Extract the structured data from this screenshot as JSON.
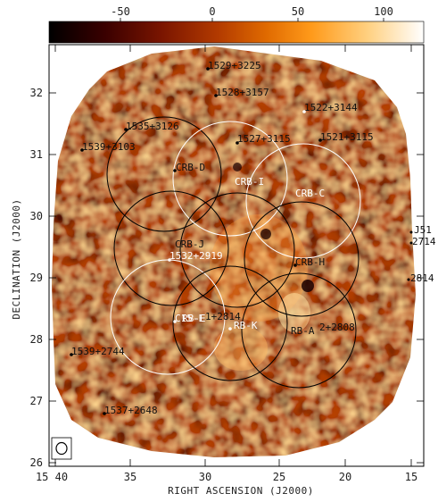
{
  "colorbar": {
    "tick_labels": [
      "-50",
      "0",
      "50",
      "100"
    ],
    "colors": [
      "#000000",
      "#3a0000",
      "#7a1500",
      "#b23a00",
      "#e06a00",
      "#ff9a1a",
      "#ffd080",
      "#ffffff"
    ]
  },
  "axes": {
    "xlabel": "RIGHT ASCENSION (J2000)",
    "ylabel": "DECLINATION (J2000)",
    "x_ticks": [
      "15 40",
      "35",
      "30",
      "25",
      "20",
      "15"
    ],
    "y_ticks": [
      "26",
      "27",
      "28",
      "29",
      "30",
      "31",
      "32"
    ]
  },
  "sources": [
    {
      "label": "1529+3225",
      "color": "dark"
    },
    {
      "label": "1528+3157",
      "color": "dark"
    },
    {
      "label": "1522+3144",
      "color": "white"
    },
    {
      "label": "1535+3126",
      "color": "dark"
    },
    {
      "label": "1527+3115",
      "color": "dark"
    },
    {
      "label": "1521+3115",
      "color": "dark"
    },
    {
      "label": "1539+3103",
      "color": "dark"
    },
    {
      "label": "1532+2919",
      "color": "white"
    },
    {
      "label": "1539+2744",
      "color": "dark"
    },
    {
      "label": "1537+2648",
      "color": "dark"
    },
    {
      "label": "RB-E",
      "color": "white"
    },
    {
      "label": "RB-K",
      "color": "white"
    },
    {
      "label": "RB-A",
      "color": "dark"
    },
    {
      "label": "2+2808",
      "color": "dark"
    },
    {
      "label": "1+2814",
      "color": "dark"
    },
    {
      "label": "CRB-H",
      "color": "dark"
    }
  ],
  "fields": [
    {
      "label": "CRB-D",
      "ring": "black"
    },
    {
      "label": "CRB-I",
      "ring": "white"
    },
    {
      "label": "CRB-C",
      "ring": "white"
    },
    {
      "label": "CRB-J",
      "ring": "black"
    },
    {
      "label": "C15-E",
      "ring": "white"
    }
  ],
  "edge_labels": [
    "J51",
    "2714",
    "2814"
  ],
  "beam_icon": "beam-ellipse-icon"
}
